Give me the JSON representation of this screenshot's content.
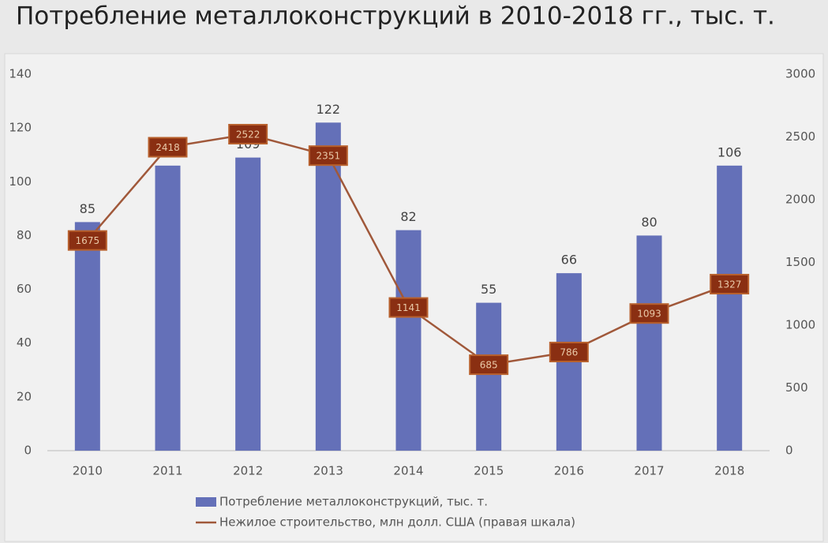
{
  "chart_data": {
    "type": "bar",
    "title": "Потребление металлоконструкций в 2010-2018 гг., тыс. т.",
    "categories": [
      "2010",
      "2011",
      "2012",
      "2013",
      "2014",
      "2015",
      "2016",
      "2017",
      "2018"
    ],
    "series": [
      {
        "name": "Потребление металлоконструкций, тыс. т.",
        "type": "bar",
        "color": "#6470b8",
        "values": [
          85,
          106,
          109,
          122,
          82,
          55,
          66,
          80,
          106
        ]
      },
      {
        "name": "Нежилое строительство, млн долл. США (правая шкала)",
        "type": "line",
        "axis": "y2",
        "color": "#a0583a",
        "values": [
          1675,
          2418,
          2522,
          2351,
          1141,
          685,
          786,
          1093,
          1327
        ]
      }
    ],
    "ylim": [
      0,
      140
    ],
    "yticks": [
      0,
      20,
      40,
      60,
      80,
      100,
      120,
      140
    ],
    "y2lim": [
      0,
      3000
    ],
    "y2ticks": [
      0,
      500,
      1000,
      1500,
      2000,
      2500,
      3000
    ],
    "grid": false,
    "legend": "bottom"
  }
}
